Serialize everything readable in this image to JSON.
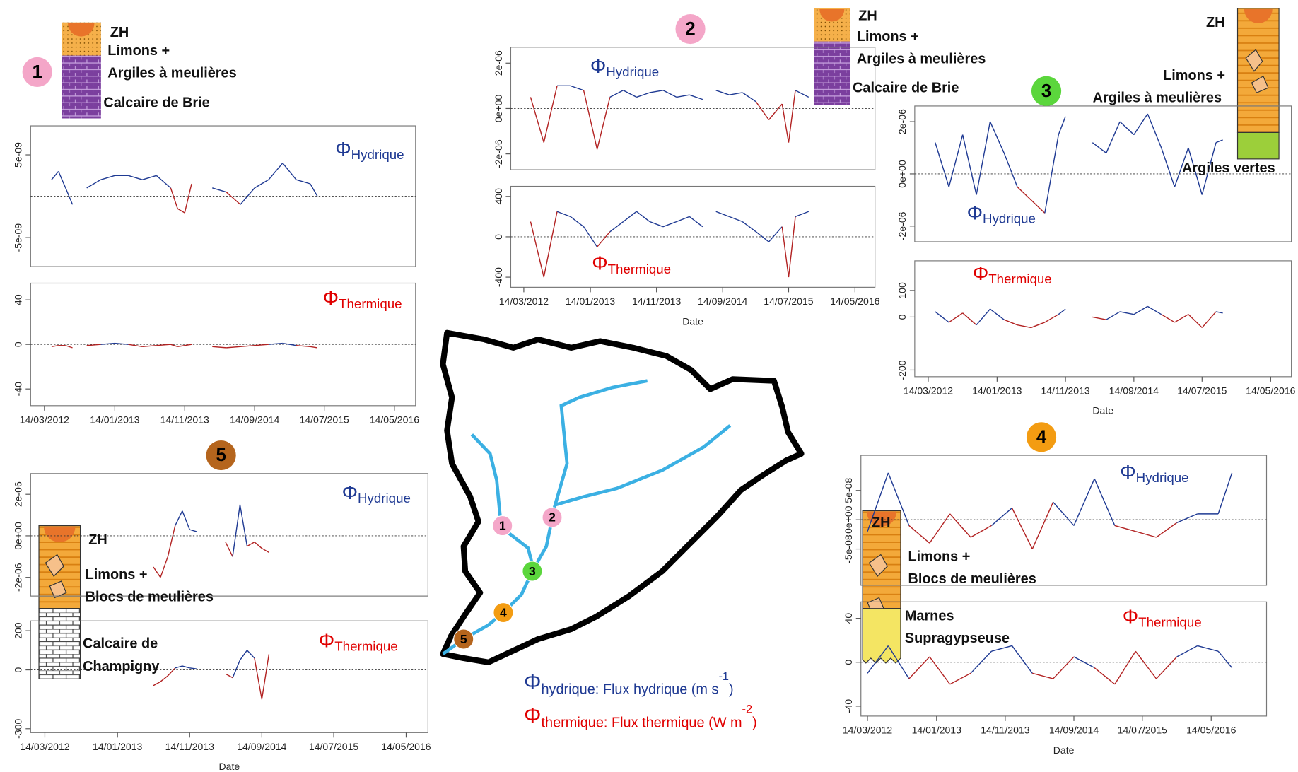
{
  "chart_data": [
    {
      "type": "line",
      "annotation": {
        "symbol": "Φ",
        "text": "Hydrique",
        "color": "#1f3a93"
      },
      "x": [
        "14/04/2012",
        "14/05/2012",
        "14/06/2012",
        "14/07/2012",
        "14/08/2012",
        "14/09/2012",
        "14/11/2012",
        "14/01/2013",
        "14/03/2013",
        "14/05/2013",
        "14/07/2013",
        "14/09/2013",
        "14/10/2013",
        "14/11/2013",
        "14/12/2013",
        "14/01/2014",
        "14/03/2014",
        "14/05/2014",
        "14/07/2014",
        "14/09/2014",
        "14/11/2014",
        "14/01/2015",
        "14/03/2015",
        "14/05/2015",
        "14/06/2015"
      ],
      "values": [
        2e-09,
        3e-09,
        1e-09,
        -1e-09,
        null,
        1e-09,
        2e-09,
        2.5e-09,
        2.5e-09,
        2e-09,
        2.5e-09,
        1e-09,
        -1.5e-09,
        -2e-09,
        1.5e-09,
        null,
        1e-09,
        5e-10,
        -1e-09,
        1e-09,
        2e-09,
        4e-09,
        2e-09,
        1.5e-09,
        0
      ],
      "xlim": [
        "14/01/2012",
        "14/08/2016"
      ],
      "ylim": [
        -8.5e-09,
        8.5e-09
      ],
      "yticks": [
        {
          "value": 5e-09,
          "label": "5e-09"
        },
        {
          "value": -5e-09,
          "label": "-5e-09"
        }
      ],
      "pos_color": "#1f3a93",
      "neg_color": "#b22222",
      "baseline": true
    },
    {
      "type": "line",
      "annotation": {
        "symbol": "Φ",
        "text": "Thermique",
        "color": "#e00000"
      },
      "x": [
        "14/04/2012",
        "14/05/2012",
        "14/06/2012",
        "14/07/2012",
        "14/08/2012",
        "14/09/2012",
        "14/11/2012",
        "14/01/2013",
        "14/03/2013",
        "14/05/2013",
        "14/07/2013",
        "14/09/2013",
        "14/10/2013",
        "14/11/2013",
        "14/12/2013",
        "14/01/2014",
        "14/03/2014",
        "14/05/2014",
        "14/07/2014",
        "14/09/2014",
        "14/11/2014",
        "14/01/2015",
        "14/03/2015",
        "14/05/2015",
        "14/06/2015"
      ],
      "values": [
        -2,
        -1,
        -1,
        -3,
        null,
        -1,
        0,
        1,
        0,
        -2,
        -1,
        0,
        -2,
        -1,
        0,
        null,
        -2,
        -3,
        -2,
        -1,
        0,
        1,
        -1,
        -2,
        -3
      ],
      "xlim": [
        "14/01/2012",
        "14/08/2016"
      ],
      "ylim": [
        -55,
        55
      ],
      "yticks": [
        40,
        0,
        -40
      ],
      "xticks": [
        "14/03/2012",
        "14/01/2013",
        "14/11/2013",
        "14/09/2014",
        "14/07/2015",
        "14/05/2016"
      ],
      "pos_color": "#1f3a93",
      "neg_color": "#b22222",
      "baseline": true
    },
    {
      "type": "line",
      "annotation": {
        "symbol": "Φ",
        "text": "Hydrique",
        "color": "#1f3a93"
      },
      "x": [
        "14/04/2012",
        "14/06/2012",
        "14/08/2012",
        "14/10/2012",
        "14/12/2012",
        "14/02/2013",
        "14/04/2013",
        "14/06/2013",
        "14/08/2013",
        "14/10/2013",
        "14/12/2013",
        "14/02/2014",
        "14/04/2014",
        "14/06/2014",
        "14/07/2014",
        "14/08/2014",
        "14/10/2014",
        "14/12/2014",
        "14/02/2015",
        "14/04/2015",
        "14/06/2015",
        "14/07/2015",
        "14/08/2015",
        "14/10/2015"
      ],
      "values": [
        5e-07,
        -1.5e-06,
        1e-06,
        1e-06,
        8e-07,
        -1.8e-06,
        5e-07,
        8e-07,
        5e-07,
        7e-07,
        8e-07,
        5e-07,
        6e-07,
        4e-07,
        null,
        8e-07,
        6e-07,
        7e-07,
        3e-07,
        -5e-07,
        2e-07,
        -1.5e-06,
        8e-07,
        5e-07
      ],
      "xlim": [
        "14/01/2012",
        "14/08/2016"
      ],
      "ylim": [
        -2.7e-06,
        2.7e-06
      ],
      "yticks": [
        {
          "value": 2e-06,
          "label": "2e-06"
        },
        {
          "value": 0,
          "label": "0e+00"
        },
        {
          "value": -2e-06,
          "label": "-2e-06"
        }
      ],
      "pos_color": "#1f3a93",
      "neg_color": "#b22222",
      "baseline": true
    },
    {
      "type": "line",
      "annotation": {
        "symbol": "Φ",
        "text": "Thermique",
        "color": "#e00000"
      },
      "x": [
        "14/04/2012",
        "14/06/2012",
        "14/08/2012",
        "14/10/2012",
        "14/12/2012",
        "14/02/2013",
        "14/04/2013",
        "14/06/2013",
        "14/08/2013",
        "14/10/2013",
        "14/12/2013",
        "14/02/2014",
        "14/04/2014",
        "14/06/2014",
        "14/07/2014",
        "14/08/2014",
        "14/10/2014",
        "14/12/2014",
        "14/02/2015",
        "14/04/2015",
        "14/06/2015",
        "14/07/2015",
        "14/08/2015",
        "14/10/2015"
      ],
      "values": [
        150,
        -400,
        250,
        200,
        100,
        -100,
        50,
        150,
        250,
        150,
        100,
        150,
        200,
        100,
        null,
        250,
        200,
        150,
        50,
        -50,
        100,
        -400,
        200,
        250
      ],
      "xlim": [
        "14/01/2012",
        "14/08/2016"
      ],
      "ylim": [
        -500,
        500
      ],
      "yticks": [
        400,
        0,
        -400
      ],
      "xticks": [
        "14/03/2012",
        "14/01/2013",
        "14/11/2013",
        "14/09/2014",
        "14/07/2015",
        "14/05/2016"
      ],
      "xlabel": "Date",
      "pos_color": "#1f3a93",
      "neg_color": "#b22222",
      "baseline": true
    },
    {
      "type": "line",
      "annotation": {
        "symbol": "Φ",
        "text": "Hydrique",
        "color": "#1f3a93"
      },
      "x": [
        "14/04/2012",
        "14/06/2012",
        "14/08/2012",
        "14/10/2012",
        "14/12/2012",
        "14/02/2013",
        "14/04/2013",
        "14/06/2013",
        "14/08/2013",
        "14/10/2013",
        "14/11/2013",
        "14/01/2014",
        "14/03/2014",
        "14/05/2014",
        "14/07/2014",
        "14/09/2014",
        "14/11/2014",
        "14/01/2015",
        "14/03/2015",
        "14/05/2015",
        "14/07/2015",
        "14/09/2015",
        "14/10/2015"
      ],
      "values": [
        1.2e-06,
        -5e-07,
        1.5e-06,
        -8e-07,
        2e-06,
        8e-07,
        -5e-07,
        -1e-06,
        -1.5e-06,
        1.5e-06,
        2.2e-06,
        null,
        1.2e-06,
        8e-07,
        2e-06,
        1.5e-06,
        2.3e-06,
        1e-06,
        -5e-07,
        1e-06,
        -8e-07,
        1.2e-06,
        1.3e-06
      ],
      "xlim": [
        "14/01/2012",
        "14/08/2016"
      ],
      "ylim": [
        -2.6e-06,
        2.6e-06
      ],
      "yticks": [
        {
          "value": 2e-06,
          "label": "2e-06"
        },
        {
          "value": 0,
          "label": "0e+00"
        },
        {
          "value": -2e-06,
          "label": "-2e-06"
        }
      ],
      "pos_color": "#1f3a93",
      "neg_color": "#b22222",
      "baseline": true
    },
    {
      "type": "line",
      "annotation": {
        "symbol": "Φ",
        "text": "Thermique",
        "color": "#e00000"
      },
      "x": [
        "14/04/2012",
        "14/06/2012",
        "14/08/2012",
        "14/10/2012",
        "14/12/2012",
        "14/02/2013",
        "14/04/2013",
        "14/06/2013",
        "14/08/2013",
        "14/10/2013",
        "14/11/2013",
        "14/01/2014",
        "14/03/2014",
        "14/05/2014",
        "14/07/2014",
        "14/09/2014",
        "14/11/2014",
        "14/01/2015",
        "14/03/2015",
        "14/05/2015",
        "14/07/2015",
        "14/09/2015",
        "14/10/2015"
      ],
      "values": [
        20,
        -20,
        15,
        -30,
        30,
        -10,
        -30,
        -40,
        -20,
        10,
        30,
        null,
        0,
        -10,
        20,
        10,
        40,
        10,
        -20,
        10,
        -40,
        20,
        15
      ],
      "xlim": [
        "14/01/2012",
        "14/08/2016"
      ],
      "ylim": [
        -225,
        212
      ],
      "yticks": [
        100,
        0,
        -200
      ],
      "xticks": [
        "14/03/2012",
        "14/01/2013",
        "14/11/2013",
        "14/09/2014",
        "14/07/2015",
        "14/05/2016"
      ],
      "xlabel": "Date",
      "pos_color": "#1f3a93",
      "neg_color": "#b22222",
      "baseline": true
    },
    {
      "type": "line",
      "annotation": {
        "symbol": "Φ",
        "text": "Hydrique",
        "color": "#1f3a93"
      },
      "x": [
        "14/06/2013",
        "14/07/2013",
        "14/08/2013",
        "14/09/2013",
        "14/10/2013",
        "14/11/2013",
        "14/12/2013",
        "14/02/2014",
        "14/04/2014",
        "14/05/2014",
        "14/06/2014",
        "14/07/2014",
        "14/08/2014",
        "14/09/2014",
        "14/10/2014"
      ],
      "values": [
        -1.5e-06,
        -2e-06,
        -1e-06,
        5e-07,
        1.2e-06,
        3e-07,
        2e-07,
        null,
        -3e-07,
        -1e-06,
        1.5e-06,
        -5e-07,
        -3e-07,
        -6e-07,
        -8e-07
      ],
      "xlim": [
        "14/01/2012",
        "14/08/2016"
      ],
      "ylim": [
        -2.9e-06,
        3e-06
      ],
      "yticks": [
        {
          "value": 2e-06,
          "label": "2e-06"
        },
        {
          "value": 0,
          "label": "0e+00"
        },
        {
          "value": -2e-06,
          "label": "-2e-06"
        }
      ],
      "pos_color": "#1f3a93",
      "neg_color": "#b22222",
      "baseline": true
    },
    {
      "type": "line",
      "annotation": {
        "symbol": "Φ",
        "text": "Thermique",
        "color": "#e00000"
      },
      "x": [
        "14/06/2013",
        "14/07/2013",
        "14/08/2013",
        "14/09/2013",
        "14/10/2013",
        "14/11/2013",
        "14/12/2013",
        "14/02/2014",
        "14/04/2014",
        "14/05/2014",
        "14/06/2014",
        "14/07/2014",
        "14/08/2014",
        "14/09/2014",
        "14/10/2014"
      ],
      "values": [
        -80,
        -60,
        -30,
        10,
        20,
        10,
        5,
        null,
        -20,
        -40,
        50,
        100,
        60,
        -150,
        80
      ],
      "xlim": [
        "14/01/2012",
        "14/08/2016"
      ],
      "ylim": [
        -320,
        250
      ],
      "yticks": [
        200,
        0,
        -300
      ],
      "xticks": [
        "14/03/2012",
        "14/01/2013",
        "14/11/2013",
        "14/09/2014",
        "14/07/2015",
        "14/05/2016"
      ],
      "xlabel": "Date",
      "pos_color": "#1f3a93",
      "neg_color": "#b22222",
      "baseline": true
    },
    {
      "type": "line",
      "annotation": {
        "symbol": "Φ",
        "text": "Hydrique",
        "color": "#1f3a93"
      },
      "x": [
        "14/03/2012",
        "14/06/2012",
        "14/09/2012",
        "14/12/2012",
        "14/03/2013",
        "14/06/2013",
        "14/09/2013",
        "14/12/2013",
        "14/03/2014",
        "14/06/2014",
        "14/09/2014",
        "14/12/2014",
        "14/03/2015",
        "14/06/2015",
        "14/09/2015",
        "14/12/2015",
        "14/03/2016",
        "14/06/2016",
        "14/08/2016"
      ],
      "values": [
        -2e-08,
        8e-08,
        -1e-08,
        -4e-08,
        1e-08,
        -3e-08,
        -1e-08,
        2e-08,
        -5e-08,
        3e-08,
        -1e-08,
        7e-08,
        -1e-08,
        -2e-08,
        -3e-08,
        -5e-09,
        1e-08,
        1e-08,
        8e-08
      ],
      "xlim": [
        "14/02/2012",
        "14/01/2017"
      ],
      "ylim": [
        -1.12e-07,
        1.1e-07
      ],
      "yticks": [
        {
          "value": 5e-08,
          "label": "5e-08"
        },
        {
          "value": 0,
          "label": "0e+00"
        },
        {
          "value": -5e-08,
          "label": "-5e-08"
        }
      ],
      "pos_color": "#1f3a93",
      "neg_color": "#b22222",
      "baseline": true
    },
    {
      "type": "line",
      "annotation": {
        "symbol": "Φ",
        "text": "Thermique",
        "color": "#e00000"
      },
      "x": [
        "14/03/2012",
        "14/06/2012",
        "14/09/2012",
        "14/12/2012",
        "14/03/2013",
        "14/06/2013",
        "14/09/2013",
        "14/12/2013",
        "14/03/2014",
        "14/06/2014",
        "14/09/2014",
        "14/12/2014",
        "14/03/2015",
        "14/06/2015",
        "14/09/2015",
        "14/12/2015",
        "14/03/2016",
        "14/06/2016",
        "14/08/2016"
      ],
      "values": [
        -10,
        15,
        -15,
        5,
        -20,
        -10,
        10,
        15,
        -10,
        -15,
        5,
        -5,
        -20,
        10,
        -15,
        5,
        15,
        10,
        -5
      ],
      "xlim": [
        "14/02/2012",
        "14/01/2017"
      ],
      "ylim": [
        -49,
        55
      ],
      "yticks": [
        40,
        0,
        -40
      ],
      "xticks": [
        "14/03/2012",
        "14/01/2013",
        "14/11/2013",
        "14/09/2014",
        "14/07/2015",
        "14/05/2016"
      ],
      "xlabel": "Date",
      "pos_color": "#1f3a93",
      "neg_color": "#b22222",
      "baseline": true
    }
  ],
  "panels": [
    {
      "label": "1",
      "column": [
        "ZH",
        "Limons +",
        "Argiles à meulières",
        "Calcaire de Brie"
      ]
    },
    {
      "label": "2",
      "column": [
        "ZH",
        "Limons +",
        "Argiles à meulières",
        "Calcaire de Brie"
      ]
    },
    {
      "label": "3",
      "column": [
        "ZH",
        "Limons +",
        "Argiles à meulières",
        "Argiles vertes"
      ]
    },
    {
      "label": "4",
      "column": [
        "ZH",
        "Limons +",
        "Blocs de meulières",
        "Marnes",
        "Supragypseuse"
      ]
    },
    {
      "label": "5",
      "column": [
        "ZH",
        "Limons +",
        "Blocs de meulières",
        "Calcaire de",
        "Champigny"
      ]
    }
  ],
  "map": {
    "points": [
      "1",
      "2",
      "3",
      "4",
      "5"
    ]
  },
  "legend": [
    {
      "symbol": "Φ",
      "subscript": "hydrique",
      "text": ": Flux hydrique (m s",
      "superscript": "-1",
      "close": ")",
      "color": "#1f3a93"
    },
    {
      "symbol": "Φ",
      "subscript": "thermique",
      "text": ": Flux thermique (W m",
      "superscript": "-2",
      "close": ")",
      "color": "#e00000"
    }
  ]
}
